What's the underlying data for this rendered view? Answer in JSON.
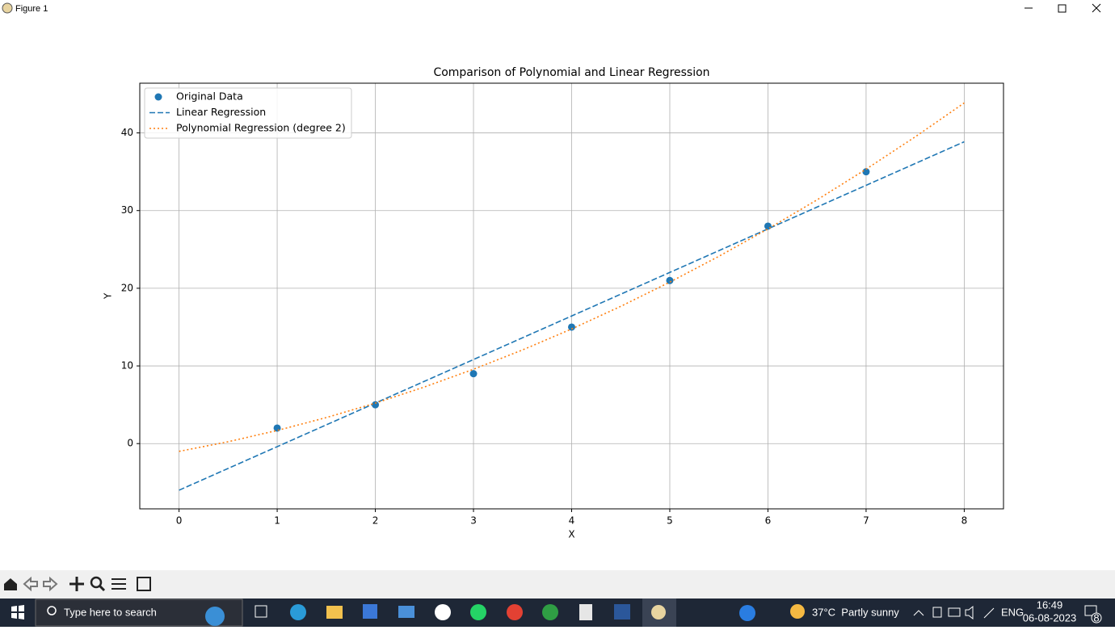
{
  "window": {
    "title": "Figure 1"
  },
  "chart_data": {
    "type": "combo",
    "title": "Comparison of Polynomial and Linear Regression",
    "x_label": "X",
    "y_label": "Y",
    "xlim": [
      -0.4,
      8.4
    ],
    "ylim": [
      -8.4,
      46.4
    ],
    "xticks": [
      0,
      1,
      2,
      3,
      4,
      5,
      6,
      7,
      8
    ],
    "yticks": [
      0,
      10,
      20,
      30,
      40
    ],
    "grid": true,
    "legend": "upper left",
    "series": [
      {
        "name": "Original Data",
        "type": "scatter",
        "color": "#1f77b4",
        "x": [
          1,
          2,
          3,
          4,
          5,
          6,
          7
        ],
        "values": [
          2,
          5,
          9,
          15,
          21,
          28,
          35
        ]
      },
      {
        "name": "Linear Regression",
        "type": "line",
        "style": "dashed",
        "color": "#1f77b4",
        "x": [
          0,
          8
        ],
        "values": [
          -6.0,
          38.86
        ]
      },
      {
        "name": "Polynomial Regression (degree 2)",
        "type": "line",
        "style": "dotted",
        "color": "#ff7f0e",
        "x": [
          0,
          0.5,
          1,
          1.5,
          2,
          2.5,
          3,
          3.5,
          4,
          4.5,
          5,
          5.5,
          6,
          6.5,
          7,
          7.5,
          8
        ],
        "values": [
          -1.0,
          0.24,
          1.69,
          3.35,
          5.21,
          7.29,
          9.57,
          12.06,
          14.76,
          17.67,
          20.79,
          24.11,
          27.64,
          31.38,
          35.33,
          39.49,
          43.86
        ]
      }
    ]
  },
  "taskbar": {
    "search": "Type here to search",
    "weather": "37°C  Partly sunny",
    "language": "ENG",
    "time": "16:49",
    "date": "06-08-2023",
    "notifications": "8"
  }
}
